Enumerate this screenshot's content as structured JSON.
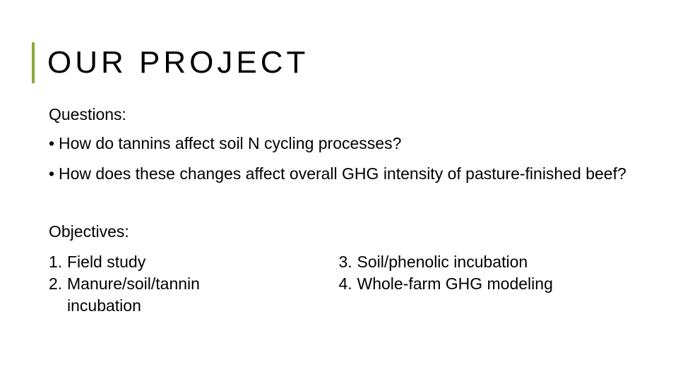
{
  "accent_color": "#8aab3c",
  "text_color": "#000000",
  "background_color": "#ffffff",
  "title": "OUR PROJECT",
  "title_fontsize": 44,
  "title_letter_spacing": 5,
  "body_fontsize": 23,
  "questions": {
    "label": "Questions:",
    "items": [
      "How do tannins affect soil N cycling processes?",
      "How does these changes affect overall GHG intensity of pasture-finished beef?"
    ]
  },
  "objectives": {
    "label": "Objectives:",
    "left": [
      {
        "n": "1.",
        "text": "Field study"
      },
      {
        "n": "2.",
        "text": "Manure/soil/tannin"
      },
      {
        "n": "",
        "text": "incubation"
      }
    ],
    "right": [
      {
        "n": "3.",
        "text": "Soil/phenolic incubation"
      },
      {
        "n": "4.",
        "text": "Whole-farm GHG modeling"
      }
    ]
  }
}
